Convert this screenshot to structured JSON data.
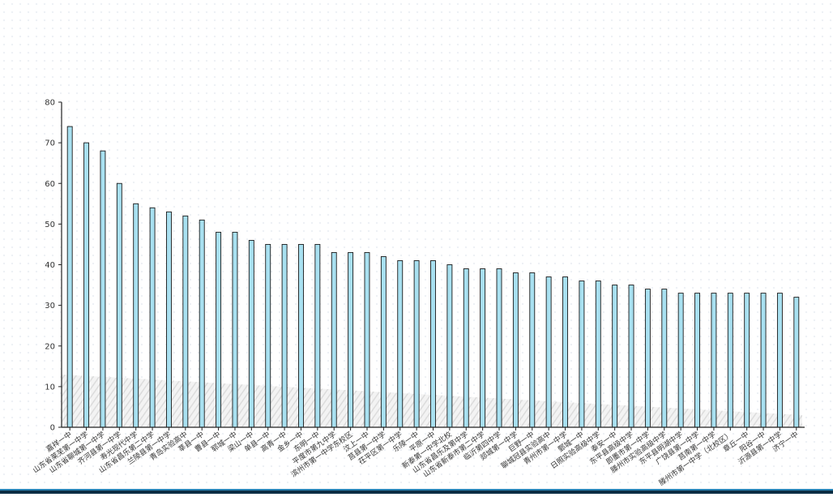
{
  "chart_data": {
    "type": "bar",
    "title": "",
    "xlabel": "",
    "ylabel": "",
    "ylim": [
      0,
      80
    ],
    "yticks": [
      0,
      10,
      20,
      30,
      40,
      50,
      60,
      70,
      80
    ],
    "grid": false,
    "legend": "none",
    "bar_color": "#a8e0f0",
    "bar_edge_color": "#1a1a1a",
    "categories": [
      "嘉祥一中",
      "山东省莱芜第一中学",
      "山东省聊城第一中学",
      "齐河县第一中学",
      "寿光现代中学",
      "山东省昌乐第二中学",
      "兰陵县第一中学",
      "青岛实验高中",
      "莘县一中",
      "曹县一中",
      "郓城一中",
      "梁山一中",
      "单县一中",
      "高青一中",
      "金乡一中",
      "东明一中",
      "平度市第九中学",
      "滨州市第一中学东校区",
      "汶上一中",
      "莒县第一中学",
      "茌平区第一中学",
      "乐陵一中",
      "平原一中",
      "新泰第一中学北校",
      "山东省昌乐及第中学",
      "山东省新泰市第二中学",
      "临沂第四中学",
      "郯城第一中学",
      "巨野一中",
      "聊城冠县实验高中",
      "青州市第一中学",
      "鄄城一中",
      "日照实验高级中学",
      "泰安一中",
      "东平县高级中学",
      "即墨市第一中学",
      "滕州市实验高级中学",
      "东平县明湖中学",
      "广饶县第一中学",
      "莒南第一中学",
      "滕州市第一中学（北校区）",
      "章丘一中",
      "阳谷一中",
      "沂源县第一中学",
      "济宁一中"
    ],
    "values": [
      74,
      70,
      68,
      60,
      55,
      54,
      53,
      52,
      51,
      48,
      48,
      46,
      45,
      45,
      45,
      45,
      43,
      43,
      43,
      42,
      41,
      41,
      41,
      40,
      39,
      39,
      39,
      38,
      38,
      37,
      37,
      36,
      36,
      35,
      35,
      34,
      34,
      33,
      33,
      33,
      33,
      33,
      33,
      33,
      32
    ]
  }
}
